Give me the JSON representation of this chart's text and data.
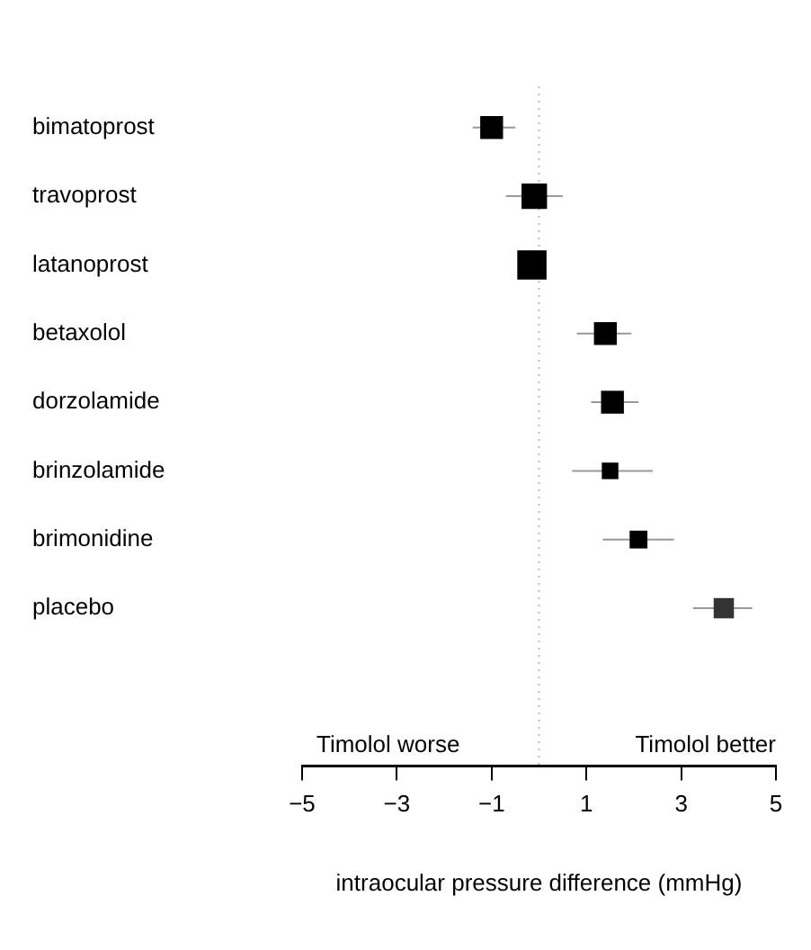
{
  "chart_data": {
    "type": "bubble",
    "orientation": "horizontal",
    "categories": [
      "bimatoprost",
      "travoprost",
      "latanoprost",
      "betaxolol",
      "dorzolamide",
      "brinzolamide",
      "brimonidine",
      "placebo"
    ],
    "values": [
      -1.0,
      -0.1,
      -0.15,
      1.4,
      1.55,
      1.5,
      2.1,
      3.9
    ],
    "errors": [
      [
        -1.4,
        -0.5
      ],
      [
        -0.7,
        0.5
      ],
      [
        -0.4,
        0.1
      ],
      [
        0.8,
        1.95
      ],
      [
        1.1,
        2.1
      ],
      [
        0.7,
        2.4
      ],
      [
        1.35,
        2.85
      ],
      [
        3.25,
        4.5
      ]
    ],
    "sizes": [
      0.61,
      0.76,
      1,
      0.61,
      0.61,
      0.32,
      0.37,
      0.48
    ],
    "colors": [
      "#000000",
      "#000000",
      "#000000",
      "#000000",
      "#000000",
      "#000000",
      "#000000",
      "#333333"
    ],
    "marker": "square",
    "xlim": [
      -5,
      5
    ],
    "xticks": [
      -5,
      -3,
      -1,
      1,
      3,
      5
    ],
    "xlabel": "intraocular pressure difference (mmHg)",
    "annotations": [
      "Timolol worse",
      "Timolol better"
    ],
    "ref_lines": [
      {
        "axis": "x",
        "value": 0,
        "color": "#bbbbbb",
        "line_style": "dotted"
      }
    ],
    "grid": false,
    "legend": false
  }
}
